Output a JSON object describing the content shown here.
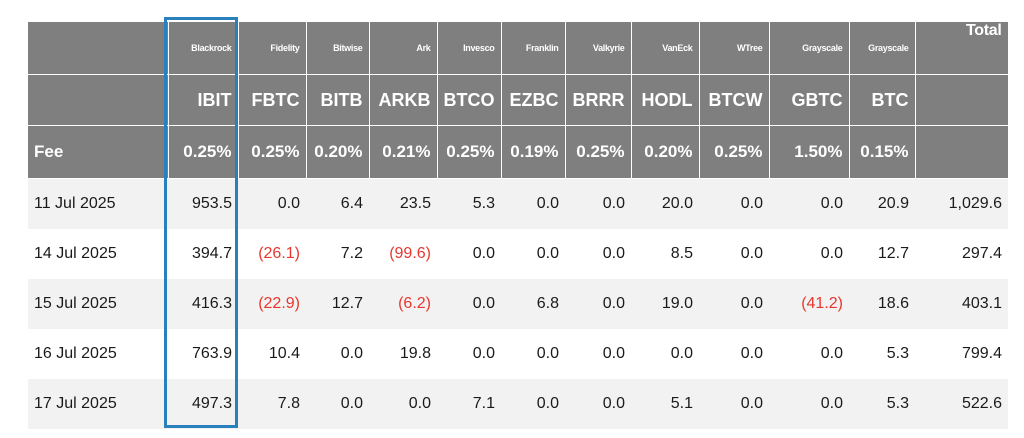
{
  "chart_data": {
    "type": "table",
    "issuers": [
      "Blackrock",
      "Fidelity",
      "Bitwise",
      "Ark",
      "Invesco",
      "Franklin",
      "Valkyrie",
      "VanEck",
      "WTree",
      "Grayscale",
      "Grayscale"
    ],
    "tickers": [
      "IBIT",
      "FBTC",
      "BITB",
      "ARKB",
      "BTCO",
      "EZBC",
      "BRRR",
      "HODL",
      "BTCW",
      "GBTC",
      "BTC"
    ],
    "fees": [
      "0.25%",
      "0.25%",
      "0.20%",
      "0.21%",
      "0.25%",
      "0.19%",
      "0.25%",
      "0.20%",
      "0.25%",
      "1.50%",
      "0.15%"
    ],
    "fee_label": "Fee",
    "total_label": "Total",
    "rows": [
      {
        "date": "11 Jul 2025",
        "values": [
          "953.5",
          "0.0",
          "6.4",
          "23.5",
          "5.3",
          "0.0",
          "0.0",
          "20.0",
          "0.0",
          "0.0",
          "20.9"
        ],
        "total": "1,029.6"
      },
      {
        "date": "14 Jul 2025",
        "values": [
          "394.7",
          "(26.1)",
          "7.2",
          "(99.6)",
          "0.0",
          "0.0",
          "0.0",
          "8.5",
          "0.0",
          "0.0",
          "12.7"
        ],
        "total": "297.4"
      },
      {
        "date": "15 Jul 2025",
        "values": [
          "416.3",
          "(22.9)",
          "12.7",
          "(6.2)",
          "0.0",
          "6.8",
          "0.0",
          "19.0",
          "0.0",
          "(41.2)",
          "18.6"
        ],
        "total": "403.1"
      },
      {
        "date": "16 Jul 2025",
        "values": [
          "763.9",
          "10.4",
          "0.0",
          "19.8",
          "0.0",
          "0.0",
          "0.0",
          "0.0",
          "0.0",
          "0.0",
          "5.3"
        ],
        "total": "799.4"
      },
      {
        "date": "17 Jul 2025",
        "values": [
          "497.3",
          "7.8",
          "0.0",
          "0.0",
          "7.1",
          "0.0",
          "0.0",
          "5.1",
          "0.0",
          "0.0",
          "5.3"
        ],
        "total": "522.6"
      }
    ],
    "highlighted_column": "IBIT",
    "colors": {
      "header_bg": "#7f7f7f",
      "negative": "#e8372e",
      "highlight_border": "#2a7fbd",
      "stripe": "#f2f2f2"
    }
  }
}
